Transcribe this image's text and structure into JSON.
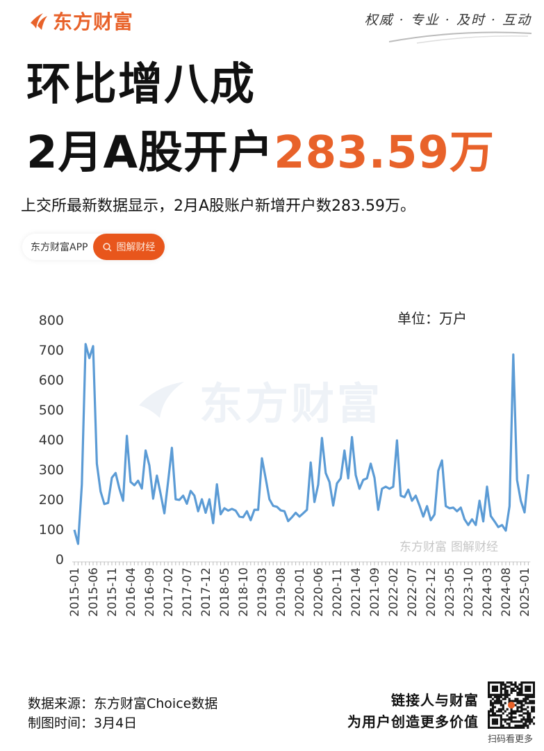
{
  "header": {
    "brand": "东方财富",
    "slogan": "权威 · 专业 · 及时 · 互动",
    "title_line1": "环比增八成",
    "title_line2_prefix": "2月A股开户",
    "title_line2_highlight": "283.59万",
    "subtitle": "上交所最新数据显示，2月A股账户新增开户数283.59万。",
    "accent_color": "#e8622a"
  },
  "tag_pill": {
    "app_label": "东方财富APP",
    "button_label": "图解财经",
    "button_icon": "search-icon"
  },
  "chart_data": {
    "type": "line",
    "unit_label": "单位：万户",
    "ylim": [
      0,
      800
    ],
    "yticks": [
      0,
      100,
      200,
      300,
      400,
      500,
      600,
      700,
      800
    ],
    "xticks": [
      "2015-01",
      "2015-06",
      "2015-11",
      "2016-04",
      "2016-09",
      "2017-02",
      "2017-07",
      "2017-12",
      "2018-05",
      "2018-10",
      "2019-03",
      "2019-08",
      "2020-01",
      "2020-06",
      "2020-11",
      "2021-04",
      "2021-09",
      "2022-02",
      "2022-07",
      "2022-12",
      "2023-05",
      "2023-10",
      "2024-03",
      "2024-08",
      "2025-01"
    ],
    "x_start": "2015-01",
    "x_end": "2025-02",
    "series_color": "#5b9bd5",
    "grid": false,
    "values": [
      98,
      51,
      249,
      719,
      672,
      712,
      319,
      226,
      184,
      188,
      272,
      288,
      236,
      195,
      412,
      258,
      247,
      262,
      236,
      363,
      313,
      202,
      279,
      218,
      153,
      260,
      372,
      200,
      198,
      212,
      185,
      228,
      212,
      160,
      200,
      155,
      200,
      120,
      250,
      150,
      170,
      162,
      168,
      162,
      142,
      140,
      160,
      130,
      165,
      165,
      337,
      270,
      200,
      178,
      175,
      163,
      160,
      127,
      140,
      155,
      142,
      153,
      165,
      323,
      191,
      249,
      405,
      288,
      258,
      179,
      253,
      270,
      363,
      270,
      408,
      281,
      235,
      265,
      270,
      319,
      272,
      165,
      235,
      242,
      235,
      242,
      397,
      212,
      207,
      232,
      195,
      212,
      179,
      142,
      177,
      130,
      149,
      295,
      330,
      177,
      170,
      172,
      160,
      172,
      133,
      114,
      133,
      114,
      195,
      126,
      242,
      144,
      126,
      107,
      114,
      95,
      177,
      684,
      265,
      195,
      156,
      283.59
    ],
    "watermark": "东方财富",
    "watermark_small": [
      "东方财富",
      "图解财经"
    ]
  },
  "footer": {
    "source": "数据来源：东方财富Choice数据",
    "date": "制图时间：3月4日",
    "slogan_line1": "链接人与财富",
    "slogan_line2": "为用户创造更多价值",
    "qr_label": "扫码看更多"
  }
}
